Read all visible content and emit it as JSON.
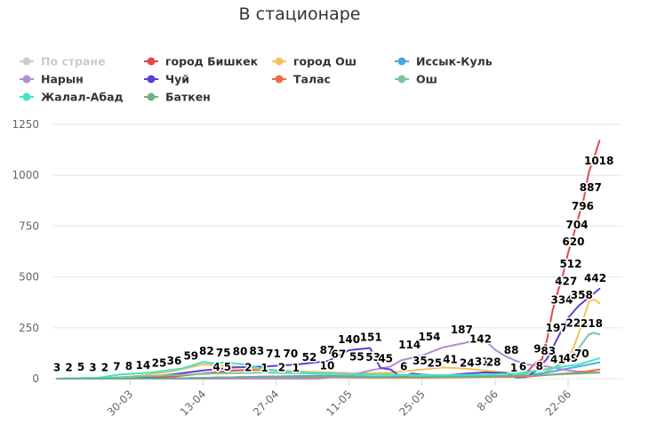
{
  "chart_data": {
    "type": "line",
    "title": "В стационаре",
    "ylim": [
      0,
      1250
    ],
    "yticks": [
      0,
      250,
      500,
      750,
      1000,
      1250
    ],
    "x_range": [
      0,
      106
    ],
    "x_ticks": [
      {
        "label": "30-03",
        "x": 14
      },
      {
        "label": "13-04",
        "x": 28
      },
      {
        "label": "27-04",
        "x": 42
      },
      {
        "label": "11-05",
        "x": 56
      },
      {
        "label": "25-05",
        "x": 70
      },
      {
        "label": "8-06",
        "x": 84
      },
      {
        "label": "22-06",
        "x": 98
      }
    ],
    "legend_position": "top",
    "series": [
      {
        "name": "По стране",
        "color": "#cccccc",
        "disabled": true,
        "points": []
      },
      {
        "name": "город Бишкек",
        "color": "#e0484e",
        "points": [
          [
            0,
            0
          ],
          [
            10,
            0
          ],
          [
            16,
            3
          ],
          [
            22,
            10
          ],
          [
            28,
            25
          ],
          [
            34,
            40
          ],
          [
            40,
            45
          ],
          [
            46,
            35
          ],
          [
            52,
            30
          ],
          [
            58,
            25
          ],
          [
            64,
            20
          ],
          [
            70,
            15
          ],
          [
            76,
            15
          ],
          [
            82,
            12
          ],
          [
            86,
            10
          ],
          [
            88,
            15
          ],
          [
            90,
            30
          ],
          [
            92,
            83
          ],
          [
            93,
            94
          ],
          [
            94,
            197
          ],
          [
            95,
            334
          ],
          [
            96,
            427
          ],
          [
            97,
            512
          ],
          [
            98,
            620
          ],
          [
            99,
            704
          ],
          [
            100,
            796
          ],
          [
            101,
            887
          ],
          [
            102,
            1018
          ],
          [
            103,
            1090
          ],
          [
            104,
            1170
          ]
        ]
      },
      {
        "name": "город Ош",
        "color": "#f2c25a",
        "points": [
          [
            0,
            0
          ],
          [
            10,
            3
          ],
          [
            16,
            15
          ],
          [
            22,
            35
          ],
          [
            28,
            70
          ],
          [
            34,
            60
          ],
          [
            40,
            45
          ],
          [
            46,
            35
          ],
          [
            52,
            30
          ],
          [
            58,
            25
          ],
          [
            64,
            30
          ],
          [
            70,
            45
          ],
          [
            74,
            55
          ],
          [
            78,
            50
          ],
          [
            82,
            40
          ],
          [
            86,
            30
          ],
          [
            90,
            20
          ],
          [
            93,
            25
          ],
          [
            96,
            60
          ],
          [
            98,
            100
          ],
          [
            99,
            150
          ],
          [
            100,
            221
          ],
          [
            101,
            300
          ],
          [
            102,
            380
          ],
          [
            103,
            390
          ],
          [
            104,
            370
          ]
        ]
      },
      {
        "name": "Иссык-Куль",
        "color": "#4ba8de",
        "points": [
          [
            0,
            0
          ],
          [
            20,
            0
          ],
          [
            30,
            5
          ],
          [
            40,
            10
          ],
          [
            50,
            15
          ],
          [
            60,
            10
          ],
          [
            70,
            8
          ],
          [
            80,
            10
          ],
          [
            90,
            15
          ],
          [
            95,
            35
          ],
          [
            100,
            60
          ],
          [
            104,
            80
          ]
        ]
      },
      {
        "name": "Нарын",
        "color": "#b08ed6",
        "points": [
          [
            0,
            0
          ],
          [
            30,
            0
          ],
          [
            50,
            0
          ],
          [
            56,
            15
          ],
          [
            60,
            40
          ],
          [
            64,
            60
          ],
          [
            66,
            90
          ],
          [
            70,
            114
          ],
          [
            74,
            154
          ],
          [
            78,
            175
          ],
          [
            80,
            187
          ],
          [
            82,
            190
          ],
          [
            84,
            142
          ],
          [
            86,
            110
          ],
          [
            88,
            88
          ],
          [
            90,
            70
          ],
          [
            94,
            60
          ],
          [
            96,
            50
          ],
          [
            98,
            40
          ],
          [
            100,
            35
          ],
          [
            104,
            30
          ]
        ]
      },
      {
        "name": "Чуй",
        "color": "#5b3fd6",
        "points": [
          [
            0,
            0
          ],
          [
            10,
            0
          ],
          [
            16,
            5
          ],
          [
            22,
            20
          ],
          [
            28,
            40
          ],
          [
            34,
            55
          ],
          [
            40,
            60
          ],
          [
            46,
            70
          ],
          [
            52,
            87
          ],
          [
            56,
            140
          ],
          [
            58,
            145
          ],
          [
            60,
            151
          ],
          [
            62,
            53
          ],
          [
            64,
            45
          ],
          [
            66,
            6
          ],
          [
            68,
            25
          ],
          [
            70,
            20
          ],
          [
            74,
            15
          ],
          [
            78,
            24
          ],
          [
            82,
            31
          ],
          [
            86,
            28
          ],
          [
            88,
            6
          ],
          [
            90,
            8
          ],
          [
            92,
            41
          ],
          [
            94,
            100
          ],
          [
            96,
            200
          ],
          [
            98,
            300
          ],
          [
            100,
            358
          ],
          [
            102,
            400
          ],
          [
            104,
            442
          ]
        ]
      },
      {
        "name": "Талас",
        "color": "#f06b3f",
        "points": [
          [
            0,
            0
          ],
          [
            20,
            0
          ],
          [
            30,
            5
          ],
          [
            40,
            10
          ],
          [
            50,
            8
          ],
          [
            60,
            5
          ],
          [
            70,
            5
          ],
          [
            80,
            8
          ],
          [
            90,
            10
          ],
          [
            95,
            20
          ],
          [
            100,
            30
          ],
          [
            104,
            45
          ]
        ]
      },
      {
        "name": "Ош",
        "color": "#7cc5a3",
        "points": [
          [
            0,
            0
          ],
          [
            10,
            5
          ],
          [
            20,
            15
          ],
          [
            30,
            25
          ],
          [
            40,
            30
          ],
          [
            50,
            25
          ],
          [
            60,
            20
          ],
          [
            70,
            15
          ],
          [
            80,
            12
          ],
          [
            88,
            15
          ],
          [
            92,
            40
          ],
          [
            95,
            49
          ],
          [
            98,
            100
          ],
          [
            100,
            150
          ],
          [
            102,
            218
          ],
          [
            103,
            225
          ],
          [
            104,
            218
          ]
        ]
      },
      {
        "name": "Жалал-Абад",
        "color": "#3ee6c4",
        "points": [
          [
            0,
            0
          ],
          [
            8,
            5
          ],
          [
            12,
            20
          ],
          [
            18,
            30
          ],
          [
            24,
            50
          ],
          [
            28,
            82
          ],
          [
            30,
            75
          ],
          [
            32,
            80
          ],
          [
            36,
            70
          ],
          [
            40,
            45
          ],
          [
            46,
            30
          ],
          [
            52,
            25
          ],
          [
            58,
            20
          ],
          [
            64,
            20
          ],
          [
            70,
            18
          ],
          [
            76,
            18
          ],
          [
            82,
            20
          ],
          [
            88,
            25
          ],
          [
            92,
            40
          ],
          [
            96,
            55
          ],
          [
            100,
            70
          ],
          [
            104,
            100
          ]
        ]
      },
      {
        "name": "Баткен",
        "color": "#6fb08a",
        "points": [
          [
            0,
            0
          ],
          [
            20,
            0
          ],
          [
            30,
            5
          ],
          [
            40,
            10
          ],
          [
            50,
            10
          ],
          [
            60,
            8
          ],
          [
            70,
            8
          ],
          [
            80,
            10
          ],
          [
            90,
            15
          ],
          [
            95,
            20
          ],
          [
            100,
            25
          ],
          [
            104,
            30
          ]
        ]
      }
    ],
    "data_labels": [
      {
        "text": "3",
        "x": 0,
        "y": 3
      },
      {
        "text": "2",
        "x": 2.3,
        "y": 2
      },
      {
        "text": "5",
        "x": 4.6,
        "y": 5
      },
      {
        "text": "3",
        "x": 6.9,
        "y": 3
      },
      {
        "text": "2",
        "x": 9.2,
        "y": 2
      },
      {
        "text": "7",
        "x": 11.5,
        "y": 7
      },
      {
        "text": "8",
        "x": 13.8,
        "y": 8
      },
      {
        "text": "14",
        "x": 16.5,
        "y": 14
      },
      {
        "text": "25",
        "x": 19.6,
        "y": 25
      },
      {
        "text": "36",
        "x": 22.5,
        "y": 36
      },
      {
        "text": "59",
        "x": 25.7,
        "y": 59
      },
      {
        "text": "82",
        "x": 28.7,
        "y": 82
      },
      {
        "text": "75",
        "x": 31.9,
        "y": 75
      },
      {
        "text": "80",
        "x": 35.1,
        "y": 80
      },
      {
        "text": "4",
        "x": 30.6,
        "y": 4
      },
      {
        "text": "5",
        "x": 32.7,
        "y": 5
      },
      {
        "text": "2",
        "x": 36.7,
        "y": 2
      },
      {
        "text": "83",
        "x": 38.3,
        "y": 83
      },
      {
        "text": "1",
        "x": 39.8,
        "y": 1
      },
      {
        "text": "71",
        "x": 41.5,
        "y": 71
      },
      {
        "text": "2",
        "x": 43.1,
        "y": 2
      },
      {
        "text": "70",
        "x": 44.8,
        "y": 70
      },
      {
        "text": "1",
        "x": 45.8,
        "y": 1
      },
      {
        "text": "52",
        "x": 48.4,
        "y": 52
      },
      {
        "text": "87",
        "x": 51.8,
        "y": 87
      },
      {
        "text": "10",
        "x": 51.8,
        "y": 10
      },
      {
        "text": "67",
        "x": 54.0,
        "y": 67
      },
      {
        "text": "140",
        "x": 56.0,
        "y": 140
      },
      {
        "text": "55",
        "x": 57.5,
        "y": 55
      },
      {
        "text": "151",
        "x": 60.2,
        "y": 151
      },
      {
        "text": "53",
        "x": 60.6,
        "y": 53
      },
      {
        "text": "45",
        "x": 63.0,
        "y": 45
      },
      {
        "text": "6",
        "x": 66.5,
        "y": 6
      },
      {
        "text": "114",
        "x": 67.6,
        "y": 114
      },
      {
        "text": "35",
        "x": 69.6,
        "y": 35
      },
      {
        "text": "154",
        "x": 71.4,
        "y": 154
      },
      {
        "text": "25",
        "x": 72.4,
        "y": 25
      },
      {
        "text": "41",
        "x": 75.4,
        "y": 41
      },
      {
        "text": "187",
        "x": 77.6,
        "y": 187
      },
      {
        "text": "24",
        "x": 78.6,
        "y": 24
      },
      {
        "text": "142",
        "x": 81.2,
        "y": 142
      },
      {
        "text": "31",
        "x": 81.5,
        "y": 31
      },
      {
        "text": "28",
        "x": 83.7,
        "y": 28
      },
      {
        "text": "88",
        "x": 87.1,
        "y": 88
      },
      {
        "text": "1",
        "x": 87.6,
        "y": 1
      },
      {
        "text": "6",
        "x": 89.3,
        "y": 6
      },
      {
        "text": "8",
        "x": 92.5,
        "y": 8
      },
      {
        "text": "94",
        "x": 92.8,
        "y": 94
      },
      {
        "text": "83",
        "x": 94.2,
        "y": 83
      },
      {
        "text": "197",
        "x": 95.8,
        "y": 197
      },
      {
        "text": "41",
        "x": 96.0,
        "y": 41
      },
      {
        "text": "334",
        "x": 96.8,
        "y": 334
      },
      {
        "text": "427",
        "x": 97.6,
        "y": 427
      },
      {
        "text": "49",
        "x": 98.5,
        "y": 49
      },
      {
        "text": "512",
        "x": 98.5,
        "y": 512
      },
      {
        "text": "620",
        "x": 99.0,
        "y": 620
      },
      {
        "text": "221",
        "x": 99.7,
        "y": 221
      },
      {
        "text": "704",
        "x": 99.7,
        "y": 704
      },
      {
        "text": "70",
        "x": 100.6,
        "y": 70
      },
      {
        "text": "358",
        "x": 100.6,
        "y": 358
      },
      {
        "text": "796",
        "x": 100.8,
        "y": 796
      },
      {
        "text": "218",
        "x": 102.5,
        "y": 218
      },
      {
        "text": "887",
        "x": 102.3,
        "y": 887
      },
      {
        "text": "442",
        "x": 103.2,
        "y": 442
      },
      {
        "text": "1018",
        "x": 103.9,
        "y": 1018
      }
    ]
  }
}
